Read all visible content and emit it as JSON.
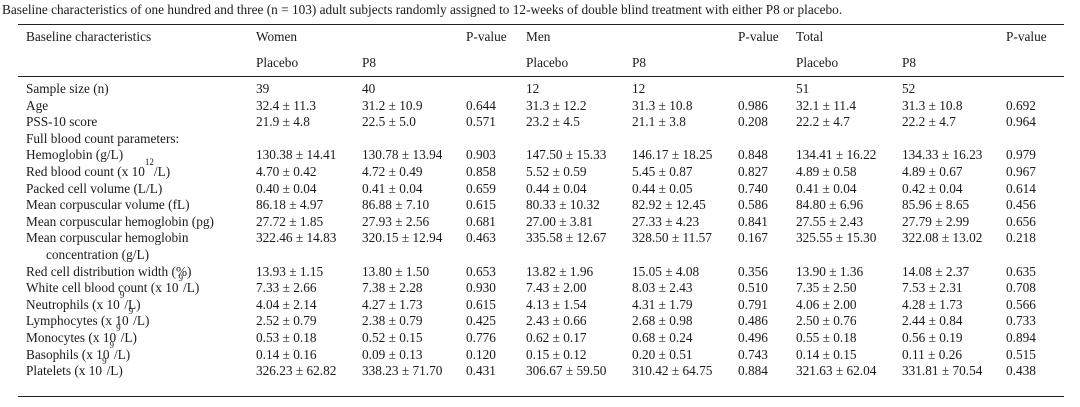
{
  "caption": "Baseline characteristics of one hundred and three (n = 103) adult subjects randomly assigned to 12-weeks of double blind treatment with either P8 or placebo.",
  "header": {
    "col_label": "Baseline characteristics",
    "women": "Women",
    "men": "Men",
    "total": "Total",
    "pvalue": "P-value",
    "placebo": "Placebo",
    "p8": "P8"
  },
  "rows": [
    {
      "label": "Sample size (n)",
      "wp": "39",
      "w8": "40",
      "wpv": "",
      "mp": "12",
      "m8": "12",
      "mpv": "",
      "tp": "51",
      "t8": "52",
      "tpv": ""
    },
    {
      "label": "Age",
      "wp": "32.4 ± 11.3",
      "w8": "31.2 ± 10.9",
      "wpv": "0.644",
      "mp": "31.3 ± 12.2",
      "m8": "31.3 ± 10.8",
      "mpv": "0.986",
      "tp": "32.1 ± 11.4",
      "t8": "31.3 ± 10.8",
      "tpv": "0.692"
    },
    {
      "label": "PSS-10 score",
      "wp": "21.9 ± 4.8",
      "w8": "22.5 ± 5.0",
      "wpv": "0.571",
      "mp": "23.2 ± 4.5",
      "m8": "21.1 ± 3.8",
      "mpv": "0.208",
      "tp": "22.2 ± 4.7",
      "t8": "22.2 ± 4.7",
      "tpv": "0.964"
    },
    {
      "label": "Full blood count parameters:",
      "wp": "",
      "w8": "",
      "wpv": "",
      "mp": "",
      "m8": "",
      "mpv": "",
      "tp": "",
      "t8": "",
      "tpv": ""
    },
    {
      "label": "Hemoglobin (g/L)",
      "wp": "130.38 ± 14.41",
      "w8": "130.78 ± 13.94",
      "wpv": "0.903",
      "mp": "147.50 ± 15.33",
      "m8": "146.17 ± 18.25",
      "mpv": "0.848",
      "tp": "134.41 ± 16.22",
      "t8": "134.33 ± 16.23",
      "tpv": "0.979"
    },
    {
      "label": "Red blood count (x 10",
      "sup": "12",
      "label_after": "/L)",
      "wp": "4.70 ± 0.42",
      "w8": "4.72 ± 0.49",
      "wpv": "0.858",
      "mp": "5.52 ± 0.59",
      "m8": "5.45 ± 0.87",
      "mpv": "0.827",
      "tp": "4.89 ± 0.58",
      "t8": "4.89 ± 0.67",
      "tpv": "0.967"
    },
    {
      "label": "Packed cell volume (L/L)",
      "wp": "0.40 ± 0.04",
      "w8": "0.41 ± 0.04",
      "wpv": "0.659",
      "mp": "0.44 ± 0.04",
      "m8": "0.44 ± 0.05",
      "mpv": "0.740",
      "tp": "0.41 ± 0.04",
      "t8": "0.42 ± 0.04",
      "tpv": "0.614"
    },
    {
      "label": "Mean corpuscular volume (fL)",
      "wp": "86.18 ± 4.97",
      "w8": "86.88 ± 7.10",
      "wpv": "0.615",
      "mp": "80.33 ± 10.32",
      "m8": "82.92 ± 12.45",
      "mpv": "0.586",
      "tp": "84.80 ± 6.96",
      "t8": "85.96 ± 8.65",
      "tpv": "0.456"
    },
    {
      "label": "Mean corpuscular hemoglobin (pg)",
      "wp": "27.72 ± 1.85",
      "w8": "27.93 ± 2.56",
      "wpv": "0.681",
      "mp": "27.00 ± 3.81",
      "m8": "27.33 ± 4.23",
      "mpv": "0.841",
      "tp": "27.55 ± 2.43",
      "t8": "27.79 ± 2.99",
      "tpv": "0.656"
    },
    {
      "label": "Mean corpuscular hemoglobin",
      "label2": "concentration (g/L)",
      "wp": "322.46 ± 14.83",
      "w8": "320.15 ± 12.94",
      "wpv": "0.463",
      "mp": "335.58 ± 12.67",
      "m8": "328.50 ± 11.57",
      "mpv": "0.167",
      "tp": "325.55 ± 15.30",
      "t8": "322.08 ± 13.02",
      "tpv": "0.218"
    },
    {
      "label": "Red cell distribution width (%)",
      "wp": "13.93 ± 1.15",
      "w8": "13.80 ± 1.50",
      "wpv": "0.653",
      "mp": "13.82 ± 1.96",
      "m8": "15.05 ± 4.08",
      "mpv": "0.356",
      "tp": "13.90 ± 1.36",
      "t8": "14.08 ± 2.37",
      "tpv": "0.635"
    },
    {
      "label": "White cell blood count (x 10",
      "sup": "9",
      "label_after": "/L)",
      "wp": "7.33 ± 2.66",
      "w8": "7.38 ± 2.28",
      "wpv": "0.930",
      "mp": "7.43 ± 2.00",
      "m8": "8.03 ± 2.43",
      "mpv": "0.510",
      "tp": "7.35 ± 2.50",
      "t8": "7.53 ± 2.31",
      "tpv": "0.708"
    },
    {
      "label": "Neutrophils (x 10",
      "sup": "9",
      "label_after": "/L)",
      "wp": "4.04 ± 2.14",
      "w8": "4.27 ± 1.73",
      "wpv": "0.615",
      "mp": "4.13 ± 1.54",
      "m8": "4.31 ± 1.79",
      "mpv": "0.791",
      "tp": "4.06 ± 2.00",
      "t8": "4.28 ± 1.73",
      "tpv": "0.566"
    },
    {
      "label": "Lymphocytes (x 10",
      "sup": "9",
      "label_after": "/L)",
      "wp": "2.52 ± 0.79",
      "w8": "2.38 ± 0.79",
      "wpv": "0.425",
      "mp": "2.43 ± 0.66",
      "m8": "2.68 ± 0.98",
      "mpv": "0.486",
      "tp": "2.50 ± 0.76",
      "t8": "2.44 ± 0.84",
      "tpv": "0.733"
    },
    {
      "label": "Monocytes (x 10",
      "sup": "9",
      "label_after": "/L)",
      "wp": "0.53 ± 0.18",
      "w8": "0.52 ± 0.15",
      "wpv": "0.776",
      "mp": "0.62 ± 0.17",
      "m8": "0.68 ± 0.24",
      "mpv": "0.496",
      "tp": "0.55 ± 0.18",
      "t8": "0.56 ± 0.19",
      "tpv": "0.894"
    },
    {
      "label": "Basophils (x 10",
      "sup": "9",
      "label_after": "/L)",
      "wp": "0.14 ± 0.16",
      "w8": "0.09 ± 0.13",
      "wpv": "0.120",
      "mp": "0.15 ± 0.12",
      "m8": "0.20 ± 0.51",
      "mpv": "0.743",
      "tp": "0.14 ± 0.15",
      "t8": "0.11 ± 0.26",
      "tpv": "0.515"
    },
    {
      "label": "Platelets (x 10",
      "sup": "9",
      "label_after": "/L)",
      "wp": "326.23 ± 62.82",
      "w8": "338.23 ± 71.70",
      "wpv": "0.431",
      "mp": "306.67 ± 59.50",
      "m8": "310.42 ± 64.75",
      "mpv": "0.884",
      "tp": "321.63 ± 62.04",
      "t8": "331.81 ± 70.54",
      "tpv": "0.438"
    }
  ]
}
